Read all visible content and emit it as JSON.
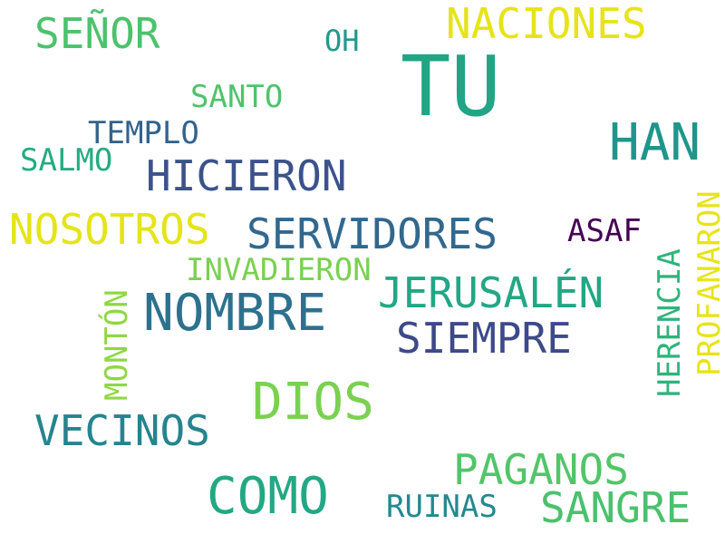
{
  "words": [
    {
      "text": "TU",
      "color": "#21a585"
    },
    {
      "text": "SEÑOR",
      "color": "#4cc26c"
    },
    {
      "text": "NACIONES",
      "color": "#e6e419"
    },
    {
      "text": "OH",
      "color": "#1f9a8a"
    },
    {
      "text": "HAN",
      "color": "#1f958b"
    },
    {
      "text": "SANTO",
      "color": "#4ec36b"
    },
    {
      "text": "TEMPLO",
      "color": "#33638d"
    },
    {
      "text": "SALMO",
      "color": "#25ab82"
    },
    {
      "text": "HICIERON",
      "color": "#3b528b"
    },
    {
      "text": "NOSOTROS",
      "color": "#e5e419"
    },
    {
      "text": "SERVIDORES",
      "color": "#31688e"
    },
    {
      "text": "ASAF",
      "color": "#440154"
    },
    {
      "text": "INVADIERON",
      "color": "#7ad151"
    },
    {
      "text": "JERUSALÉN",
      "color": "#22a785"
    },
    {
      "text": "NOMBRE",
      "color": "#2c728e"
    },
    {
      "text": "SIEMPRE",
      "color": "#3e4989"
    },
    {
      "text": "DIOS",
      "color": "#7ad151"
    },
    {
      "text": "VECINOS",
      "color": "#25848e"
    },
    {
      "text": "PAGANOS",
      "color": "#52c569"
    },
    {
      "text": "COMO",
      "color": "#22a884"
    },
    {
      "text": "RUINAS",
      "color": "#23898e"
    },
    {
      "text": "SANGRE",
      "color": "#4ac16d"
    },
    {
      "text": "MONTÓN",
      "color": "#8fd744"
    },
    {
      "text": "HERENCIA",
      "color": "#2fb47c"
    },
    {
      "text": "PROFANARON",
      "color": "#e7e419"
    }
  ]
}
